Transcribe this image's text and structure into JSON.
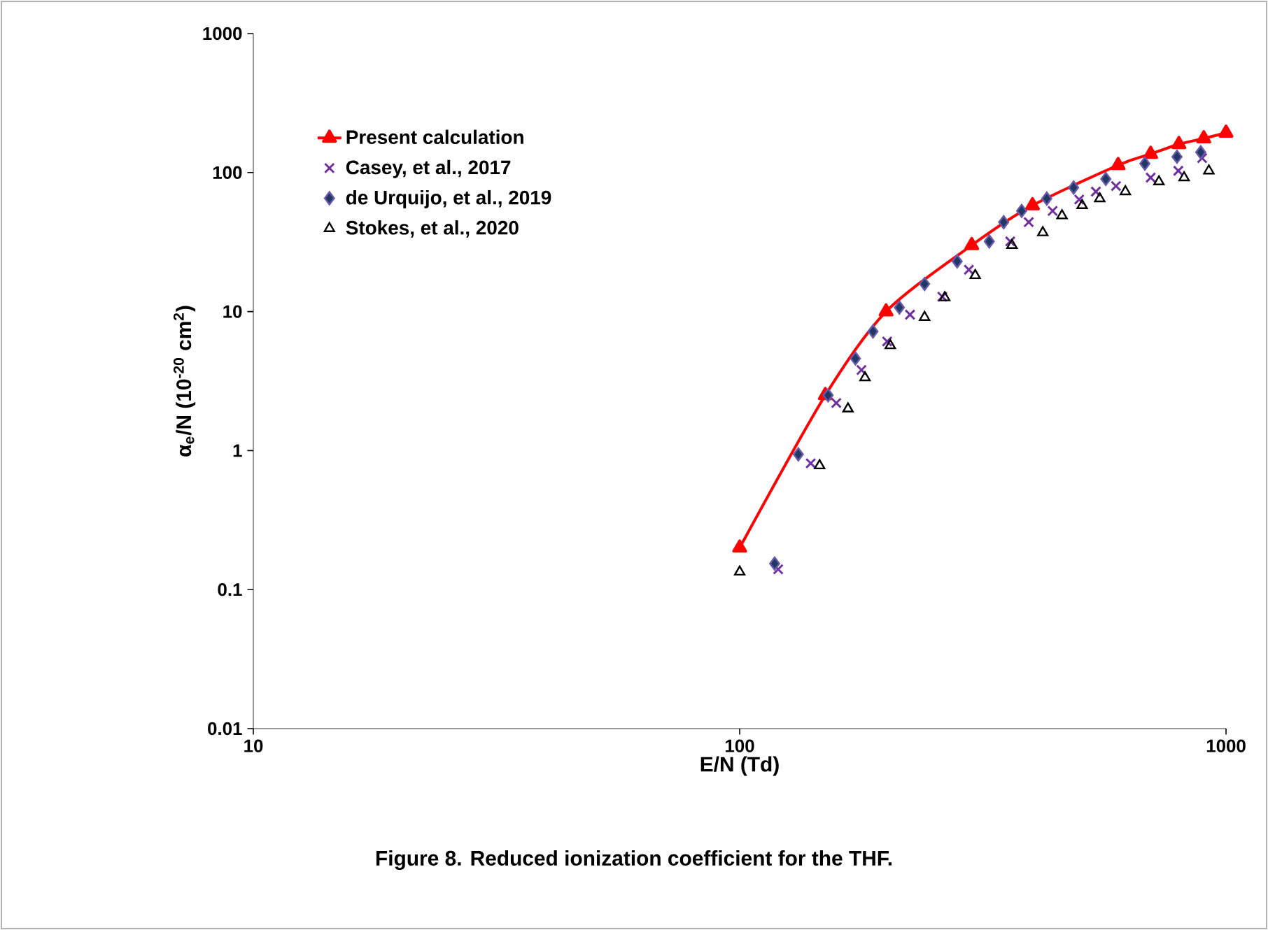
{
  "chart_data": {
    "type": "line",
    "xlabel": "E/N (Td)",
    "ylabel": "α$_{e}$/N  (10$^{-20}$ cm$^{2}$)",
    "annotations": [
      "Figure 8. Reduced ionization coefficient for the THF."
    ],
    "log": "xy",
    "xlim": [
      10,
      1000
    ],
    "ylim": [
      0.01,
      1000
    ],
    "xticks": [
      10,
      100,
      1000
    ],
    "yticks": [
      0.01,
      0.1,
      1,
      10,
      100,
      1000
    ],
    "grid": false,
    "legend": "top left",
    "series": [
      {
        "name": "Present calculation",
        "color": "#ff0000",
        "marker": "triangle",
        "line_style": "solid",
        "x": [
          100,
          150,
          200,
          300,
          400,
          600,
          700,
          800,
          900,
          1000
        ],
        "values": [
          0.2,
          2.5,
          10,
          30,
          58,
          113,
          136,
          160,
          176,
          193
        ]
      },
      {
        "name": "Casey, et al., 2017",
        "type": "scatter",
        "color": "#7030a0",
        "marker": "cross",
        "x": [
          120,
          140,
          158,
          178,
          201,
          224,
          261,
          296,
          360,
          393,
          440,
          499,
          540,
          594,
          700,
          798,
          893
        ],
        "values": [
          0.14,
          0.81,
          2.2,
          3.8,
          6.1,
          9.5,
          12.8,
          20,
          32,
          44,
          53,
          64,
          73,
          80,
          92,
          103,
          127
        ]
      },
      {
        "name": "de Urquijo, et al., 2019",
        "type": "scatter",
        "color": "#1f3864",
        "marker": "diamond",
        "x": [
          118,
          132,
          152,
          173,
          188,
          213,
          240,
          280,
          326,
          349,
          380,
          428,
          486,
          566,
          681,
          793,
          887
        ],
        "values": [
          0.154,
          0.94,
          2.5,
          4.6,
          7.2,
          10.7,
          15.8,
          23,
          32,
          44,
          53,
          65,
          78,
          90,
          116,
          130,
          140
        ]
      },
      {
        "name": "Stokes, et al., 2020",
        "type": "scatter",
        "color": "#000000",
        "marker": "triangle",
        "x": [
          100,
          146,
          167,
          181,
          204,
          240,
          264,
          305,
          363,
          420,
          460,
          506,
          550,
          621,
          728,
          820,
          922
        ],
        "values": [
          0.134,
          0.78,
          2.0,
          3.35,
          5.7,
          9.1,
          12.6,
          18.2,
          30,
          37,
          49,
          58,
          65,
          73,
          86,
          92,
          103
        ]
      }
    ]
  }
}
